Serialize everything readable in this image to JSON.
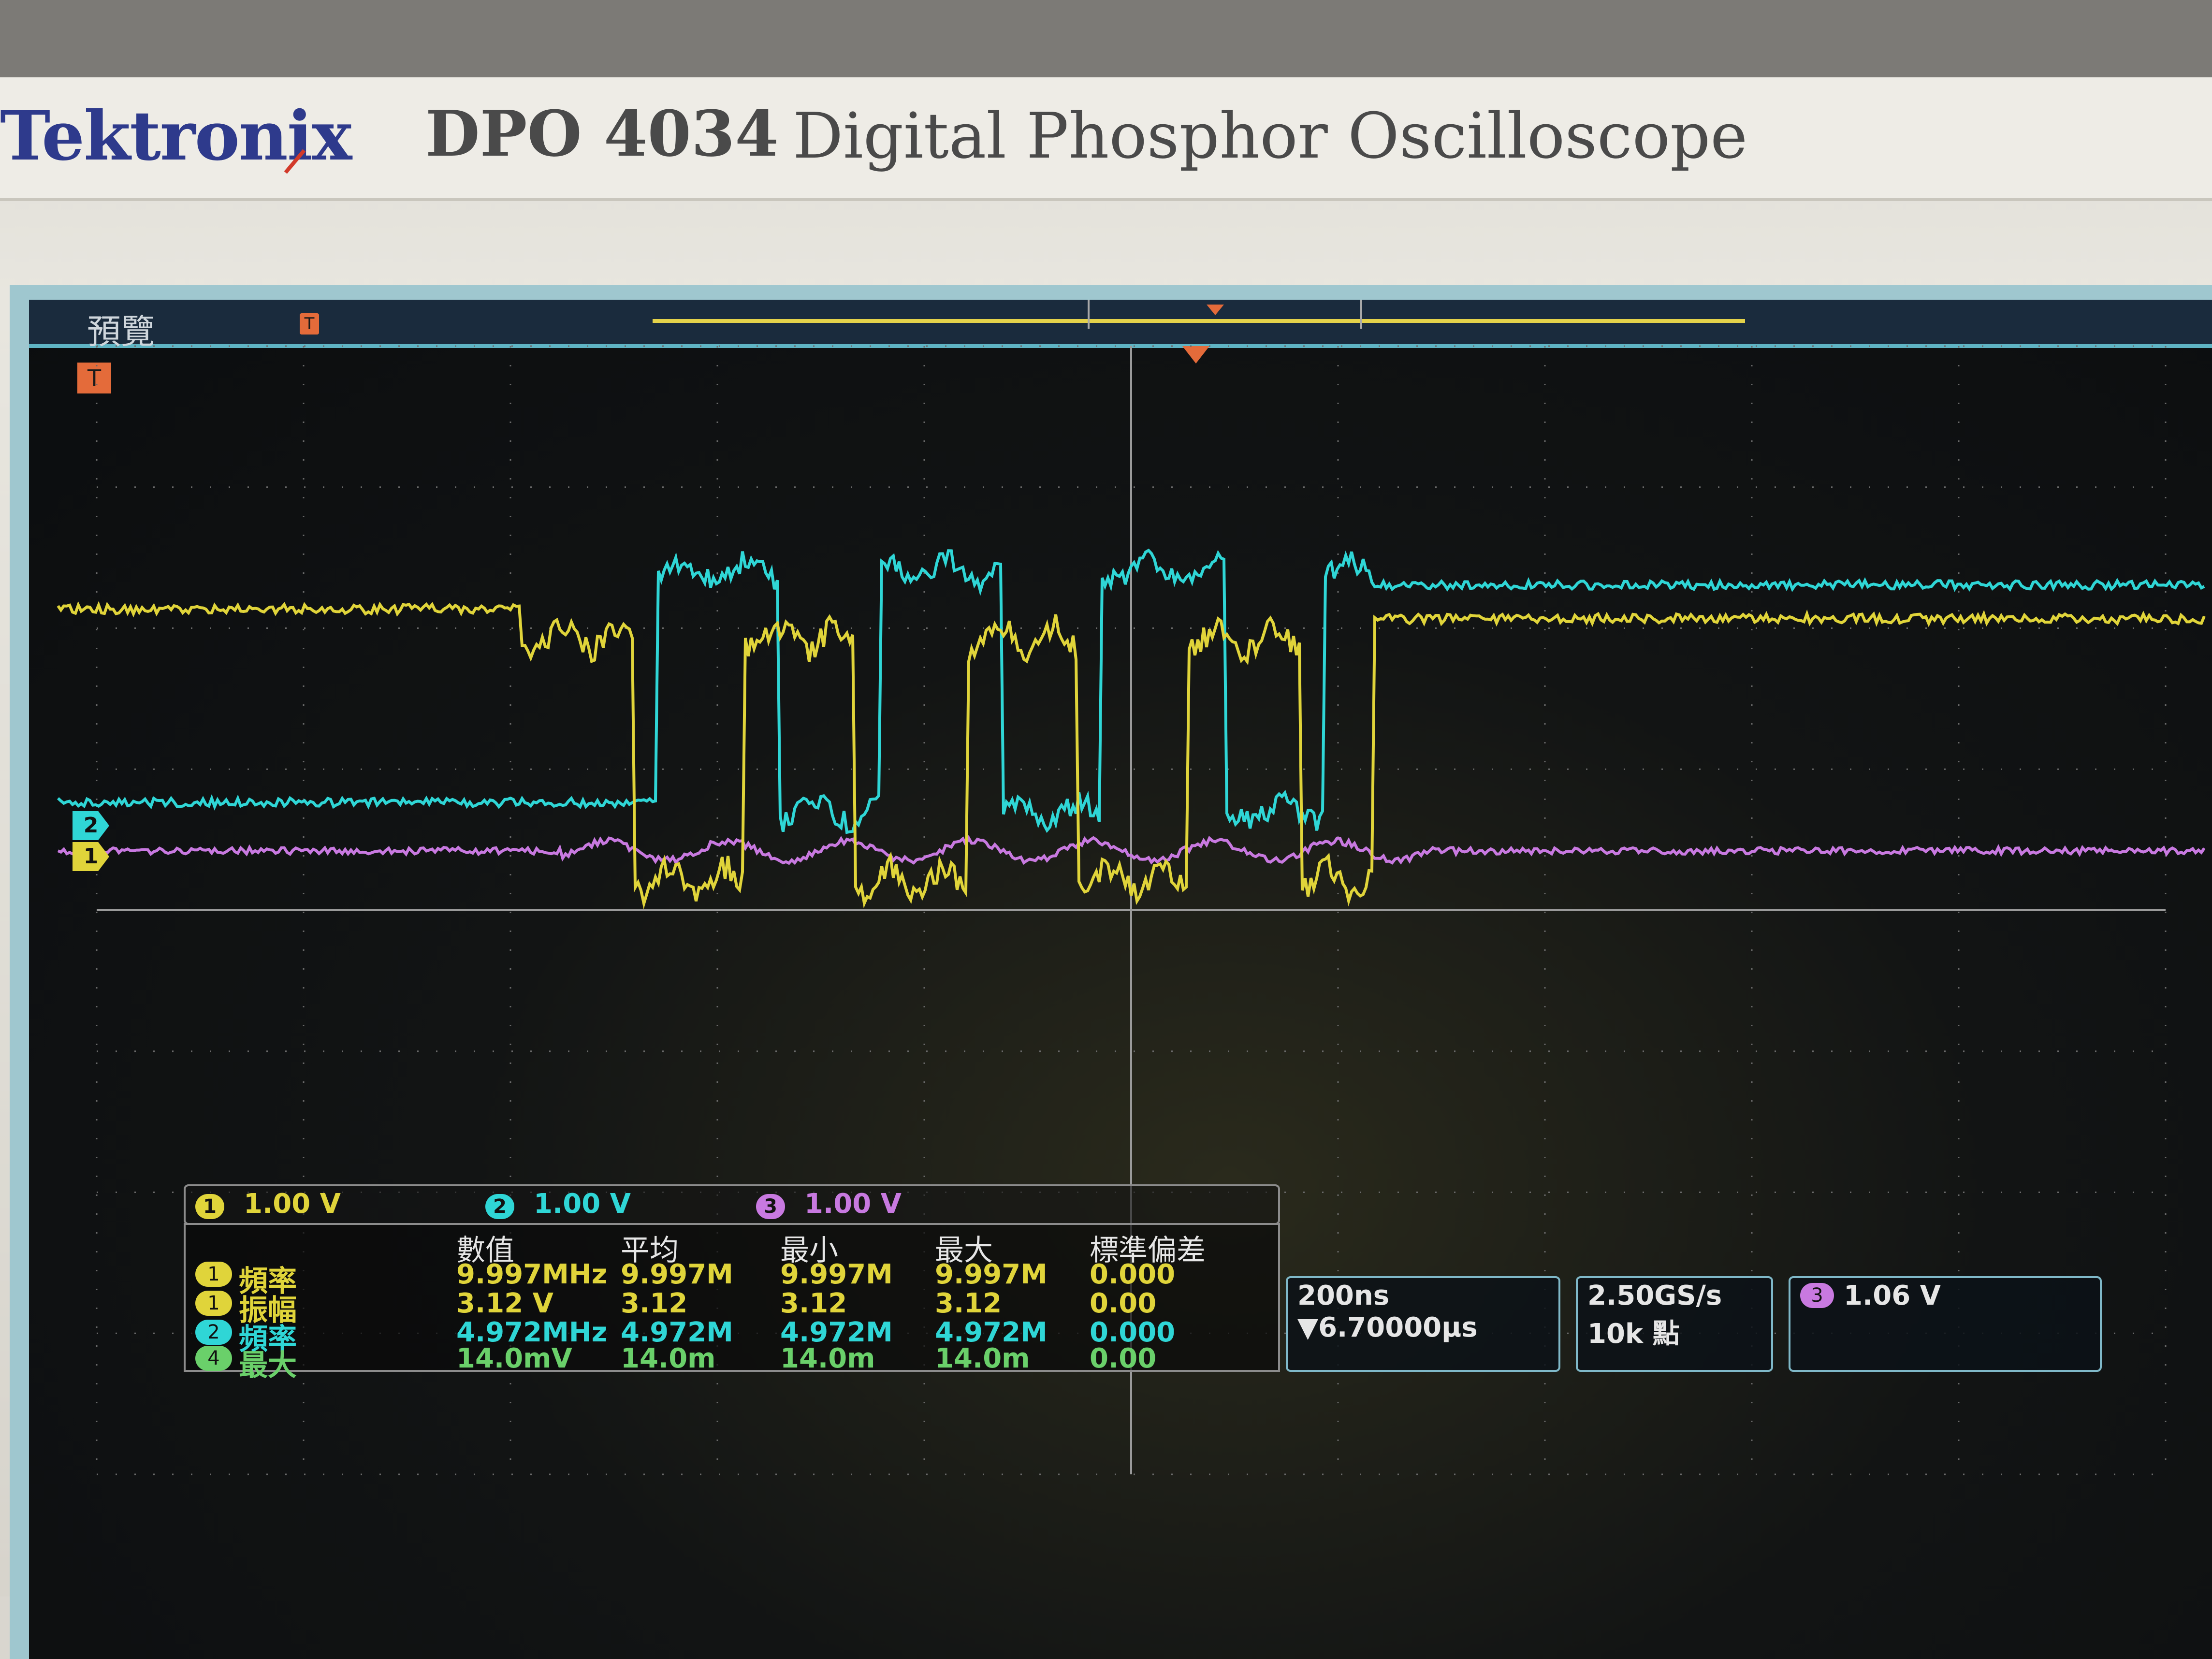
{
  "device": {
    "brand": "Tektronix",
    "model": "DPO 4034",
    "description": "Digital Phosphor Oscilloscope"
  },
  "screen": {
    "mode_label": "預覽",
    "trigger_marker": "T",
    "channels": [
      {
        "id": "1",
        "scale": "1.00 V",
        "color": "#e0d43a"
      },
      {
        "id": "2",
        "scale": "1.00 V",
        "color": "#2fd6d6"
      },
      {
        "id": "3",
        "scale": "1.00 V",
        "color": "#c879e0"
      }
    ],
    "measurements": {
      "headers": [
        "數值",
        "平均",
        "最小",
        "最大",
        "標準偏差"
      ],
      "rows": [
        {
          "channel": "1",
          "name": "頻率",
          "value": "9.997MHz",
          "mean": "9.997M",
          "min": "9.997M",
          "max": "9.997M",
          "std": "0.000",
          "color": "#e0d43a"
        },
        {
          "channel": "1",
          "name": "振幅",
          "value": "3.12 V",
          "mean": "3.12",
          "min": "3.12",
          "max": "3.12",
          "std": "0.00",
          "color": "#e0d43a"
        },
        {
          "channel": "2",
          "name": "頻率",
          "value": "4.972MHz",
          "mean": "4.972M",
          "min": "4.972M",
          "max": "4.972M",
          "std": "0.000",
          "color": "#2fd6d6"
        },
        {
          "channel": "4",
          "name": "最大",
          "value": "14.0mV",
          "mean": "14.0m",
          "min": "14.0m",
          "max": "14.0m",
          "std": "0.00",
          "color": "#6ad06a"
        }
      ]
    },
    "timebase": {
      "scale": "200ns",
      "position": "▼6.70000μs"
    },
    "acquisition": {
      "sample_rate": "2.50GS/s",
      "record_length": "10k 點"
    },
    "trigger": {
      "source": "3",
      "level": "1.06 V",
      "color": "#c879e0"
    }
  }
}
